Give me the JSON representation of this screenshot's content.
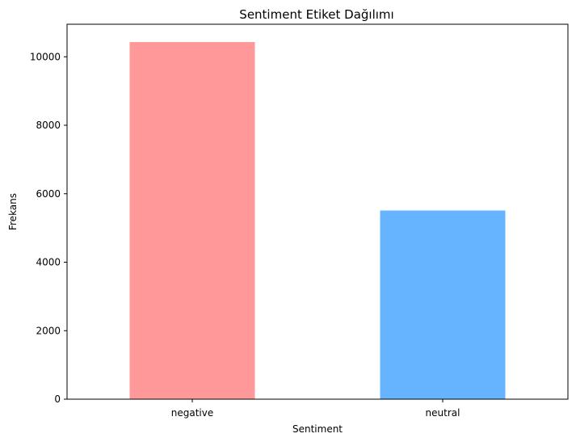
{
  "chart_data": {
    "type": "bar",
    "title": "Sentiment Etiket Dağılımı",
    "xlabel": "Sentiment",
    "ylabel": "Frekans",
    "categories": [
      "negative",
      "neutral"
    ],
    "values": [
      10430,
      5510
    ],
    "colors": [
      "#ff9999",
      "#66b3ff"
    ],
    "ylim": [
      0,
      10950
    ],
    "yticks": [
      0,
      2000,
      4000,
      6000,
      8000,
      10000
    ],
    "grid": false,
    "legend": "none"
  }
}
